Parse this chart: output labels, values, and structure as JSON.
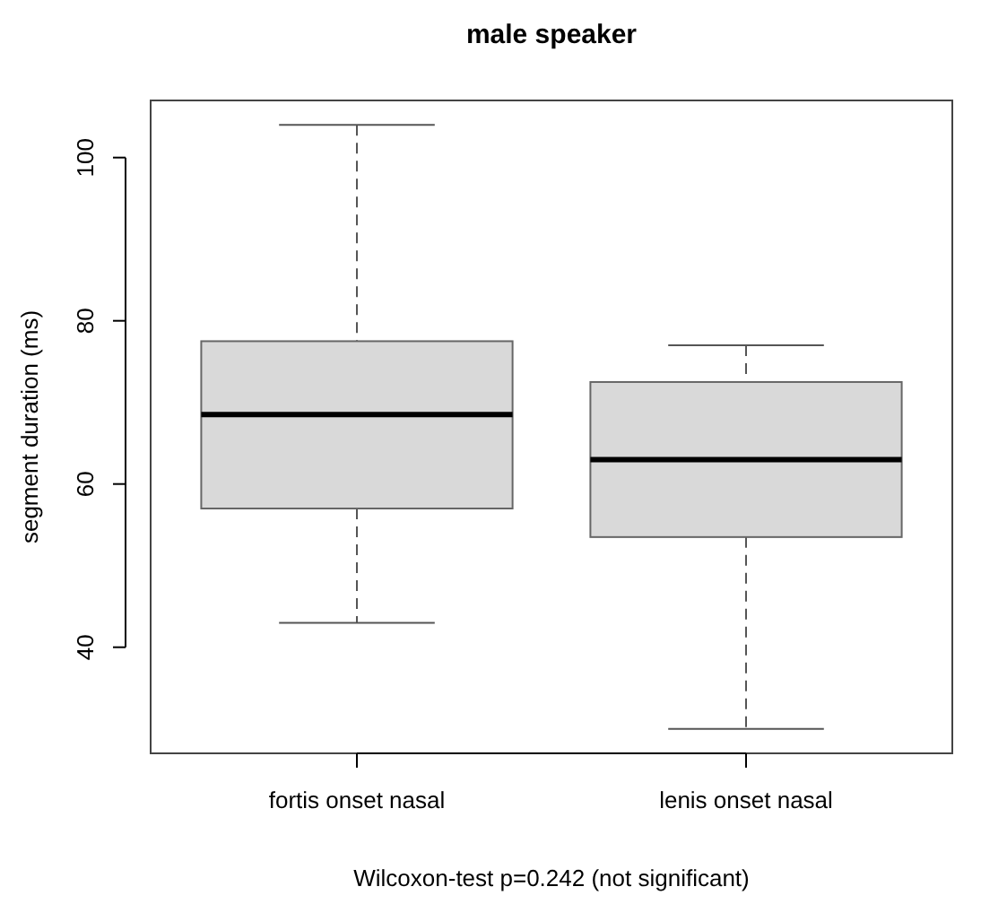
{
  "chart_data": {
    "type": "box",
    "title": "male speaker",
    "ylabel": "segment duration (ms)",
    "xlabel": "Wilcoxon-test p=0.242 (not significant)",
    "categories": [
      "fortis onset nasal",
      "lenis onset nasal"
    ],
    "boxes": [
      {
        "low": 43,
        "q1": 57,
        "median": 68.5,
        "q3": 77.5,
        "high": 104
      },
      {
        "low": 30,
        "q1": 53.5,
        "median": 63,
        "q3": 72.5,
        "high": 77
      }
    ],
    "color": "#d9d9d9",
    "ylim": [
      27,
      107
    ],
    "yticks": [
      40,
      60,
      80,
      100
    ],
    "grid": false
  }
}
